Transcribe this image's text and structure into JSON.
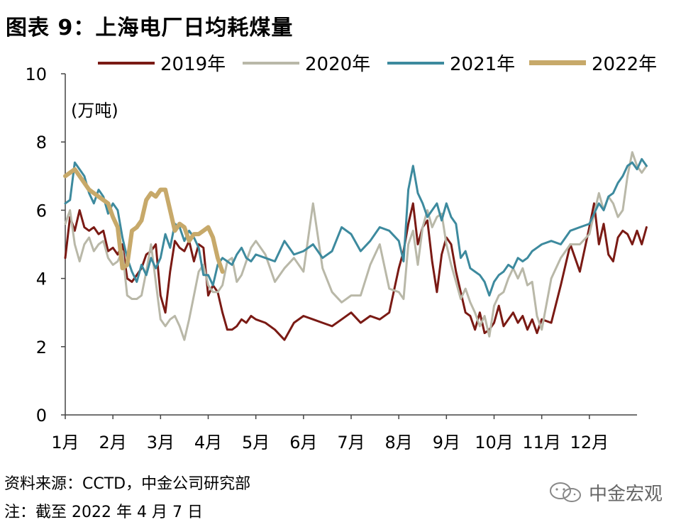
{
  "figure_title": "图表 9：上海电厂日均耗煤量",
  "unit_label": "(万吨)",
  "source_text": "资料来源：CCTD，中金公司研究部",
  "note_text": "注：截至 2022 年 4 月 7 日",
  "brand_text": "中金宏观",
  "brand_icon": "wechat-icon",
  "chart_data": {
    "type": "line",
    "title": "上海电厂日均耗煤量",
    "ylabel": "(万吨)",
    "xlabel": "",
    "ylim": [
      0,
      10
    ],
    "yticks": [
      0,
      2,
      4,
      6,
      8,
      10
    ],
    "xlim": [
      0,
      12
    ],
    "x_tick_labels": [
      "1月",
      "2月",
      "3月",
      "4月",
      "5月",
      "6月",
      "7月",
      "8月",
      "9月",
      "10月",
      "11月",
      "12月"
    ],
    "grid": false,
    "legend_position": "top",
    "series": [
      {
        "name": "2019年",
        "color": "#7a1a14",
        "x": [
          0,
          0.1,
          0.2,
          0.3,
          0.4,
          0.5,
          0.6,
          0.7,
          0.8,
          0.9,
          1.0,
          1.1,
          1.2,
          1.3,
          1.4,
          1.5,
          1.6,
          1.7,
          1.8,
          1.9,
          2.0,
          2.1,
          2.2,
          2.3,
          2.4,
          2.5,
          2.6,
          2.7,
          2.8,
          2.9,
          3.0,
          3.1,
          3.2,
          3.3,
          3.4,
          3.5,
          3.6,
          3.7,
          3.8,
          3.9,
          4.0,
          4.2,
          4.4,
          4.6,
          4.8,
          5.0,
          5.2,
          5.4,
          5.6,
          5.8,
          6.0,
          6.2,
          6.4,
          6.6,
          6.8,
          7.0,
          7.1,
          7.2,
          7.3,
          7.4,
          7.5,
          7.6,
          7.7,
          7.8,
          7.9,
          8.0,
          8.1,
          8.2,
          8.3,
          8.4,
          8.5,
          8.6,
          8.7,
          8.8,
          8.9,
          9.0,
          9.1,
          9.2,
          9.3,
          9.4,
          9.5,
          9.6,
          9.7,
          9.8,
          9.9,
          10.0,
          10.2,
          10.4,
          10.6,
          10.8,
          11.0,
          11.1,
          11.2,
          11.3,
          11.4,
          11.5,
          11.6,
          11.7,
          11.8,
          11.9,
          12.0,
          12.1,
          12.2
        ],
        "values": [
          4.6,
          5.8,
          5.4,
          6.0,
          5.5,
          5.4,
          5.5,
          5.3,
          5.4,
          4.8,
          4.9,
          4.7,
          5.0,
          4.0,
          3.9,
          4.1,
          4.3,
          4.7,
          4.8,
          5.0,
          3.5,
          3.0,
          4.2,
          5.1,
          4.9,
          4.8,
          5.1,
          4.5,
          5.0,
          4.9,
          3.5,
          3.8,
          3.6,
          3.0,
          2.5,
          2.5,
          2.6,
          2.8,
          2.7,
          2.9,
          2.8,
          2.7,
          2.5,
          2.2,
          2.7,
          2.9,
          2.8,
          2.7,
          2.6,
          2.8,
          3.0,
          2.7,
          2.9,
          2.8,
          3.0,
          4.3,
          4.8,
          5.6,
          6.2,
          5.0,
          5.5,
          5.7,
          4.5,
          3.6,
          4.7,
          5.2,
          5.0,
          4.2,
          3.6,
          3.0,
          2.9,
          2.5,
          3.0,
          2.4,
          2.5,
          2.7,
          3.2,
          2.6,
          2.8,
          3.0,
          2.7,
          2.9,
          2.5,
          2.8,
          2.4,
          2.8,
          2.7,
          3.8,
          5.0,
          4.2,
          5.5,
          6.2,
          5.0,
          5.6,
          4.7,
          4.5,
          5.2,
          5.4,
          5.3,
          5.0,
          5.4,
          5.0,
          5.5
        ]
      },
      {
        "name": "2020年",
        "color": "#b9b8a8",
        "x": [
          0,
          0.1,
          0.2,
          0.3,
          0.4,
          0.5,
          0.6,
          0.7,
          0.8,
          0.9,
          1.0,
          1.1,
          1.2,
          1.3,
          1.4,
          1.5,
          1.6,
          1.7,
          1.8,
          1.9,
          2.0,
          2.1,
          2.2,
          2.3,
          2.4,
          2.5,
          2.6,
          2.7,
          2.8,
          2.9,
          3.0,
          3.1,
          3.2,
          3.3,
          3.4,
          3.5,
          3.6,
          3.7,
          3.8,
          3.9,
          4.0,
          4.2,
          4.4,
          4.6,
          4.8,
          5.0,
          5.2,
          5.4,
          5.6,
          5.8,
          6.0,
          6.2,
          6.4,
          6.6,
          6.8,
          7.0,
          7.1,
          7.2,
          7.3,
          7.4,
          7.5,
          7.6,
          7.7,
          7.8,
          7.9,
          8.0,
          8.1,
          8.2,
          8.3,
          8.4,
          8.5,
          8.6,
          8.7,
          8.8,
          8.9,
          9.0,
          9.1,
          9.2,
          9.3,
          9.4,
          9.5,
          9.6,
          9.7,
          9.8,
          9.9,
          10.0,
          10.2,
          10.4,
          10.6,
          10.8,
          11.0,
          11.1,
          11.2,
          11.3,
          11.4,
          11.5,
          11.6,
          11.7,
          11.8,
          11.9,
          12.0,
          12.1,
          12.2
        ],
        "values": [
          5.6,
          6.0,
          5.0,
          4.5,
          5.0,
          5.2,
          4.8,
          5.0,
          5.1,
          4.6,
          4.4,
          4.5,
          4.8,
          3.5,
          3.4,
          3.4,
          3.5,
          4.2,
          5.0,
          3.9,
          2.8,
          2.6,
          2.8,
          2.9,
          2.6,
          2.2,
          2.8,
          3.5,
          4.2,
          4.4,
          3.8,
          3.6,
          3.6,
          3.8,
          4.5,
          4.6,
          3.9,
          4.1,
          4.5,
          4.9,
          5.1,
          4.7,
          3.9,
          4.3,
          4.6,
          4.2,
          6.2,
          4.3,
          3.6,
          3.3,
          3.5,
          3.5,
          4.4,
          5.0,
          3.7,
          3.6,
          3.4,
          5.0,
          5.4,
          4.4,
          5.5,
          6.0,
          5.5,
          5.8,
          5.9,
          5.0,
          4.4,
          3.9,
          3.4,
          3.7,
          3.3,
          3.0,
          2.6,
          2.9,
          2.3,
          3.2,
          3.5,
          3.6,
          4.0,
          4.3,
          4.0,
          4.3,
          3.8,
          3.9,
          2.9,
          2.5,
          4.0,
          4.6,
          5.0,
          5.0,
          5.3,
          5.9,
          6.5,
          6.0,
          6.4,
          6.2,
          5.8,
          6.0,
          7.0,
          7.7,
          7.3,
          7.1,
          7.3
        ]
      },
      {
        "name": "2021年",
        "color": "#3d8a9e",
        "x": [
          0,
          0.1,
          0.2,
          0.3,
          0.4,
          0.5,
          0.6,
          0.7,
          0.8,
          0.9,
          1.0,
          1.1,
          1.2,
          1.3,
          1.4,
          1.5,
          1.6,
          1.7,
          1.8,
          1.9,
          2.0,
          2.1,
          2.2,
          2.3,
          2.4,
          2.5,
          2.6,
          2.7,
          2.8,
          2.9,
          3.0,
          3.1,
          3.2,
          3.3,
          3.4,
          3.5,
          3.6,
          3.7,
          3.8,
          3.9,
          4.0,
          4.2,
          4.4,
          4.6,
          4.8,
          5.0,
          5.2,
          5.4,
          5.6,
          5.8,
          6.0,
          6.2,
          6.4,
          6.6,
          6.8,
          7.0,
          7.1,
          7.2,
          7.3,
          7.4,
          7.5,
          7.6,
          7.7,
          7.8,
          7.9,
          8.0,
          8.1,
          8.2,
          8.3,
          8.4,
          8.5,
          8.6,
          8.7,
          8.8,
          8.9,
          9.0,
          9.1,
          9.2,
          9.3,
          9.4,
          9.5,
          9.6,
          9.7,
          9.8,
          9.9,
          10.0,
          10.2,
          10.4,
          10.6,
          10.8,
          11.0,
          11.1,
          11.2,
          11.3,
          11.4,
          11.5,
          11.6,
          11.7,
          11.8,
          11.9,
          12.0,
          12.1,
          12.2
        ],
        "values": [
          6.2,
          6.3,
          7.4,
          7.2,
          7.0,
          6.5,
          6.2,
          6.6,
          6.4,
          5.9,
          6.2,
          6.0,
          5.2,
          4.6,
          4.2,
          3.9,
          4.4,
          4.1,
          4.6,
          4.3,
          4.6,
          5.3,
          4.9,
          5.6,
          5.5,
          5.1,
          5.4,
          5.2,
          4.9,
          4.1,
          4.1,
          3.8,
          4.4,
          4.6,
          4.5,
          4.4,
          4.7,
          4.9,
          4.6,
          4.5,
          4.7,
          4.6,
          4.5,
          5.1,
          4.7,
          4.8,
          5.0,
          4.6,
          4.8,
          5.5,
          5.3,
          4.8,
          5.1,
          5.5,
          5.4,
          5.1,
          4.5,
          6.6,
          7.3,
          6.5,
          6.2,
          5.8,
          6.0,
          6.2,
          5.7,
          6.2,
          5.8,
          5.6,
          4.6,
          4.8,
          4.3,
          4.2,
          4.1,
          3.9,
          3.5,
          3.9,
          4.1,
          4.2,
          4.4,
          4.3,
          4.6,
          4.5,
          4.6,
          4.8,
          4.9,
          5.0,
          5.1,
          5.0,
          5.4,
          5.5,
          5.6,
          5.9,
          6.2,
          6.0,
          6.4,
          6.5,
          6.8,
          7.0,
          7.3,
          7.4,
          7.2,
          7.5,
          7.3
        ]
      },
      {
        "name": "2022年",
        "color": "#c7a96a",
        "x": [
          0,
          0.1,
          0.2,
          0.3,
          0.4,
          0.5,
          0.6,
          0.7,
          0.8,
          0.9,
          1.0,
          1.1,
          1.2,
          1.3,
          1.4,
          1.5,
          1.6,
          1.7,
          1.8,
          1.9,
          2.0,
          2.1,
          2.2,
          2.3,
          2.4,
          2.5,
          2.6,
          2.7,
          2.8,
          2.9,
          3.0,
          3.1,
          3.2,
          3.3
        ],
        "values": [
          7.0,
          7.1,
          7.2,
          7.0,
          6.8,
          6.6,
          6.5,
          6.4,
          6.3,
          6.2,
          5.8,
          5.5,
          4.3,
          4.4,
          5.4,
          5.5,
          5.7,
          6.3,
          6.5,
          6.4,
          6.6,
          6.6,
          6.0,
          5.4,
          5.6,
          5.5,
          5.1,
          5.3,
          5.3,
          5.4,
          5.5,
          5.2,
          4.6,
          4.2
        ]
      }
    ]
  }
}
